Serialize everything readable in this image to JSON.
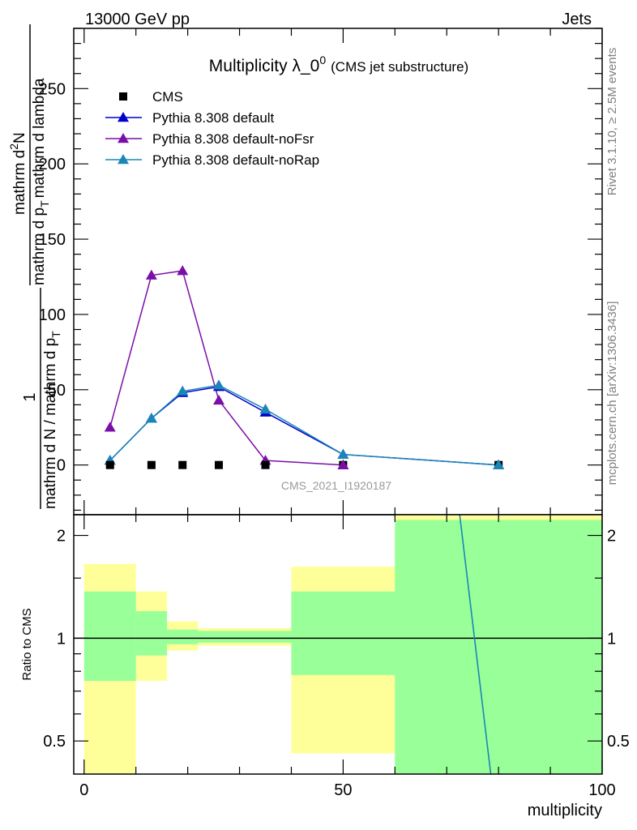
{
  "header": {
    "left": "13000 GeV pp",
    "right": "Jets"
  },
  "side_labels": {
    "rivet": "Rivet 3.1.10, ≥ 2.5M events",
    "mcplots": "mcplots.cern.ch [arXiv:1306.3436]"
  },
  "watermark": "CMS_2021_I1920187",
  "chart_data": [
    {
      "type": "line",
      "title": "Multiplicity λ_0",
      "title_superscript": "0",
      "subtitle": "(CMS jet substructure)",
      "ylabel_parts": {
        "numerator": "1",
        "denominator": "mathrm d N / mathrm d p",
        "denominator_sub": "T",
        "right_numerator": "mathrm d",
        "right_numerator_sup": "2",
        "right_numerator_tail": "N",
        "right_denominator": "mathrm d p",
        "right_denominator_sub": "T",
        "right_denominator_tail": "mathrm d lambda"
      },
      "xlim": [
        -2,
        100
      ],
      "ylim": [
        -33,
        290
      ],
      "yticks": [
        0,
        50,
        100,
        150,
        200,
        250
      ],
      "ytick_labels": [
        "0",
        "50",
        "100",
        "150",
        "200",
        "250"
      ],
      "legend_position": "top-left",
      "series": [
        {
          "name": "CMS",
          "color": "#000000",
          "marker": "square",
          "x": [
            5,
            13,
            19,
            26,
            35,
            50,
            80
          ],
          "y": [
            0,
            0,
            0,
            0,
            0,
            0,
            0
          ]
        },
        {
          "name": "Pythia 8.308 default",
          "color": "#0000cc",
          "marker": "triangle",
          "x": [
            5,
            13,
            19,
            26,
            35,
            50,
            80
          ],
          "y": [
            3,
            31,
            48,
            52,
            35,
            7,
            0
          ]
        },
        {
          "name": "Pythia 8.308 default-noFsr",
          "color": "#7a0fa8",
          "marker": "triangle",
          "x": [
            5,
            13,
            19,
            26,
            35,
            50
          ],
          "y": [
            25,
            126,
            129,
            43,
            3,
            0
          ]
        },
        {
          "name": "Pythia 8.308 default-noRap",
          "color": "#1a86b8",
          "marker": "triangle",
          "x": [
            5,
            13,
            19,
            26,
            35,
            50,
            80
          ],
          "y": [
            3,
            31,
            49,
            53,
            37,
            7,
            0
          ]
        }
      ]
    },
    {
      "type": "line",
      "ylabel": "Ratio to CMS",
      "xlabel": "multiplicity",
      "xlim": [
        -2,
        100
      ],
      "ylim": [
        0.4,
        2.3
      ],
      "y_scale": "log",
      "xticks": [
        0,
        50,
        100
      ],
      "xtick_labels": [
        "0",
        "50",
        "100"
      ],
      "yticks": [
        0.5,
        1,
        2
      ],
      "ytick_labels": [
        "0.5",
        "1",
        "2"
      ],
      "reference_line": 1,
      "bands": {
        "bin_edges": [
          0,
          10,
          16,
          22,
          30,
          40,
          60,
          100
        ],
        "yellow": [
          [
            0.37,
            1.65
          ],
          [
            0.75,
            1.37
          ],
          [
            0.92,
            1.12
          ],
          [
            0.95,
            1.07
          ],
          [
            0.95,
            1.07
          ],
          [
            0.46,
            1.62
          ],
          [
            0.35,
            2.6
          ]
        ],
        "green": [
          [
            0.75,
            1.37
          ],
          [
            0.89,
            1.2
          ],
          [
            0.96,
            1.06
          ],
          [
            0.97,
            1.05
          ],
          [
            0.97,
            1.05
          ],
          [
            0.78,
            1.37
          ],
          [
            0.35,
            2.22
          ]
        ],
        "yellow_color": "#ffff99",
        "green_color": "#99ff99"
      },
      "series": [
        {
          "name": "Pythia 8.308 default-noRap",
          "color": "#1a86b8",
          "x": [
            72.5,
            78.5
          ],
          "y": [
            2.4,
            0.4
          ]
        }
      ]
    }
  ]
}
